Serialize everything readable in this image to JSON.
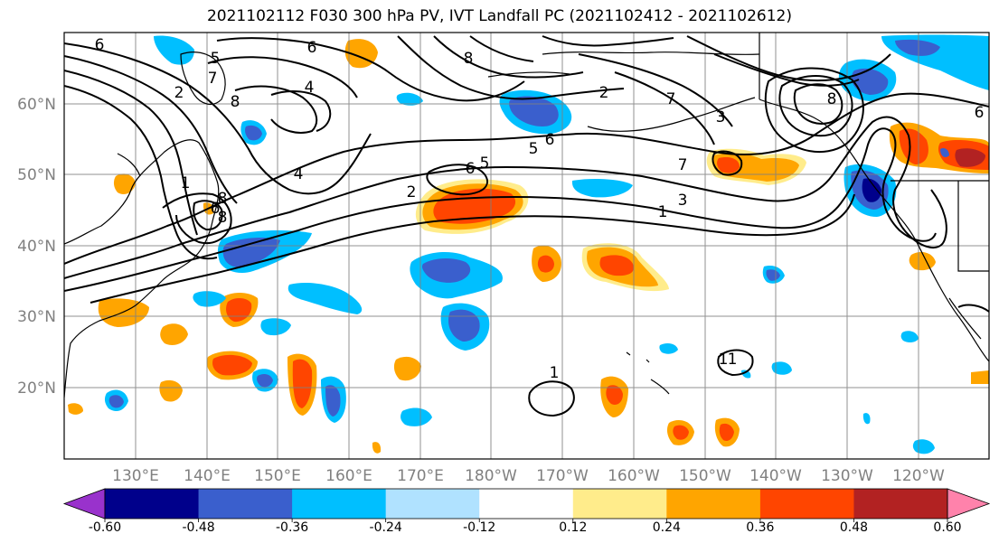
{
  "title": "2021102112 F030 300 hPa PV, IVT Landfall PC (2021102412 - 2021102612)",
  "lat_labels": [
    "60°N",
    "50°N",
    "40°N",
    "30°N",
    "20°N"
  ],
  "lon_labels": [
    "130°E",
    "140°E",
    "150°E",
    "160°E",
    "170°E",
    "180°W",
    "170°W",
    "160°W",
    "150°W",
    "140°W",
    "130°W",
    "120°W"
  ],
  "colorbar": {
    "colors": [
      "#9932cc",
      "#00008b",
      "#3a5fcd",
      "#00bfff",
      "#b0e2ff",
      "#ffffff",
      "#ffec8b",
      "#ffa500",
      "#ff4500",
      "#b22222",
      "#ff82ab"
    ],
    "tick_labels": [
      "-0.60",
      "-0.48",
      "-0.36",
      "-0.24",
      "-0.12",
      "0.12",
      "0.24",
      "0.36",
      "0.48",
      "0.60"
    ]
  },
  "contour_labels": [
    "6",
    "5",
    "7",
    "6",
    "8",
    "4",
    "8",
    "2",
    "4",
    "1",
    "8",
    "6",
    "8",
    "2",
    "6",
    "5",
    "6",
    "5",
    "2",
    "7",
    "3",
    "7",
    "3",
    "1",
    "6",
    "8",
    "1",
    "1",
    "1"
  ],
  "chart_data": {
    "type": "map",
    "title": "2021102112 F030 300 hPa PV, IVT Landfall PC (2021102412 - 2021102612)",
    "lat_ticks": [
      60,
      50,
      40,
      30,
      20
    ],
    "lon_ticks": [
      "130°E",
      "140°E",
      "150°E",
      "160°E",
      "170°E",
      "180°W",
      "170°W",
      "160°W",
      "150°W",
      "140°W",
      "130°W",
      "120°W"
    ],
    "filled_field_levels": [
      -0.6,
      -0.48,
      -0.36,
      -0.24,
      -0.12,
      0.12,
      0.24,
      0.36,
      0.48,
      0.6
    ],
    "contour_field_levels": [
      1,
      2,
      3,
      4,
      5,
      6,
      7,
      8
    ]
  }
}
